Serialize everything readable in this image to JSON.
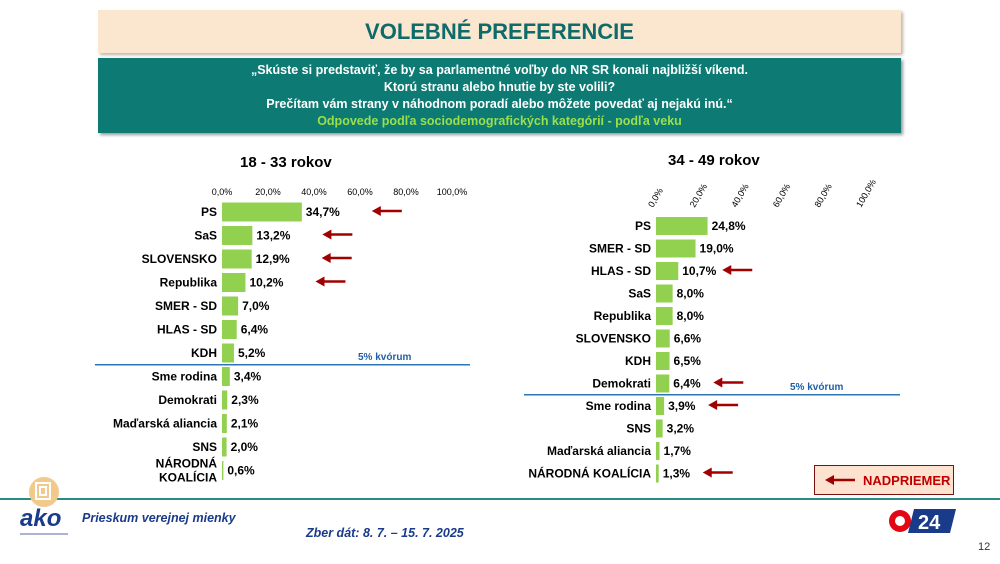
{
  "header": {
    "title": "VOLEBNÉ PREFERENCIE",
    "question_lines": [
      "„Skúste si predstaviť, že by sa parlamentné voľby do NR SR konali najbližší víkend.",
      "Ktorú stranu alebo hnutie by ste volili?",
      "Prečítam vám strany v náhodnom poradí alebo môžete povedať aj nejakú inú.“"
    ],
    "subtitle": "Odpovede podľa sociodemografických kategórií - podľa veku"
  },
  "chart_data": [
    {
      "type": "bar",
      "orientation": "horizontal",
      "title": "18 - 33 rokov",
      "xlim": [
        0,
        100
      ],
      "ticks": [
        "0,0%",
        "20,0%",
        "40,0%",
        "60,0%",
        "80,0%",
        "100,0%"
      ],
      "categories": [
        "PS",
        "SaS",
        "SLOVENSKO",
        "Republika",
        "SMER - SD",
        "HLAS - SD",
        "KDH",
        "Sme rodina",
        "Demokrati",
        "Maďarská aliancia",
        "SNS",
        "NÁRODNÁ KOALÍCIA"
      ],
      "values": [
        34.7,
        13.2,
        12.9,
        10.2,
        7.0,
        6.4,
        5.2,
        3.4,
        2.3,
        2.1,
        2.0,
        0.6
      ],
      "labels": [
        "34,7%",
        "13,2%",
        "12,9%",
        "10,2%",
        "7,0%",
        "6,4%",
        "5,2%",
        "3,4%",
        "2,3%",
        "2,1%",
        "2,0%",
        "0,6%"
      ],
      "above_average": [
        true,
        true,
        true,
        true,
        false,
        false,
        false,
        false,
        false,
        false,
        false,
        false
      ],
      "threshold_label": "5% kvórum",
      "threshold_after_index": 6,
      "bar_color": "#92d050"
    },
    {
      "type": "bar",
      "orientation": "horizontal",
      "title": "34 - 49 rokov",
      "xlim": [
        0,
        100
      ],
      "ticks": [
        "0,0%",
        "20,0%",
        "40,0%",
        "60,0%",
        "80,0%",
        "100,0%"
      ],
      "categories": [
        "PS",
        "SMER - SD",
        "HLAS - SD",
        "SaS",
        "Republika",
        "SLOVENSKO",
        "KDH",
        "Demokrati",
        "Sme rodina",
        "SNS",
        "Maďarská aliancia",
        "NÁRODNÁ KOALÍCIA"
      ],
      "values": [
        24.8,
        19.0,
        10.7,
        8.0,
        8.0,
        6.6,
        6.5,
        6.4,
        3.9,
        3.2,
        1.7,
        1.3
      ],
      "labels": [
        "24,8%",
        "19,0%",
        "10,7%",
        "8,0%",
        "8,0%",
        "6,6%",
        "6,5%",
        "6,4%",
        "3,9%",
        "3,2%",
        "1,7%",
        "1,3%"
      ],
      "above_average": [
        false,
        false,
        true,
        false,
        false,
        false,
        false,
        true,
        true,
        false,
        false,
        true
      ],
      "threshold_label": "5% kvórum",
      "threshold_after_index": 7,
      "bar_color": "#92d050"
    }
  ],
  "legend": {
    "label": "NADPRIEMER",
    "arrow_color": "#a00000"
  },
  "footer": {
    "survey": "Prieskum verejnej mienky",
    "date": "Zber dát: 8. 7. – 15. 7. 2025",
    "page": "12"
  },
  "colors": {
    "teal": "#0d7a73",
    "accent_green": "#9ae04a",
    "arrow": "#a00000",
    "threshold_line": "#2e75b6"
  },
  "icons": [
    "ako-logo-icon",
    "tv24-logo-icon"
  ]
}
